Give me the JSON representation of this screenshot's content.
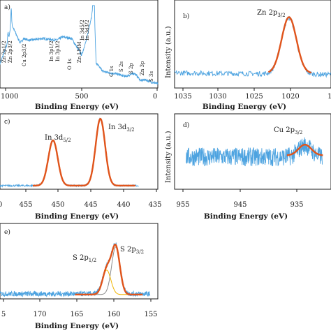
{
  "colors": {
    "raw": "#4da3e0",
    "fit": "#e0541b",
    "component_1": "#8c8c8c",
    "component_2": "#f0b400"
  },
  "chart_data": [
    {
      "panel": "a)",
      "type": "line",
      "xlabel": "Binding Energy (eV)",
      "ylabel": "",
      "xlim": [
        1100,
        0
      ],
      "xticks": [
        "1000",
        "500",
        "0"
      ],
      "reversed_x": true,
      "annotations": [
        {
          "text": "Zn 2p1/2",
          "x": 1045
        },
        {
          "text": "Zn 2p3/2",
          "x": 1022
        },
        {
          "text": "Cu 2p3/2",
          "x": 933
        },
        {
          "text": "In 3p1/2",
          "x": 703
        },
        {
          "text": "In 3p3/2",
          "x": 665
        },
        {
          "text": "O 1s",
          "x": 531
        },
        {
          "text": "Zn LMM",
          "x": 498
        },
        {
          "text": "In 3d5/2",
          "x": 444
        },
        {
          "text": "In 3d3/2",
          "x": 452
        },
        {
          "text": "C 1s",
          "x": 285
        },
        {
          "text": "S 2s",
          "x": 226
        },
        {
          "text": "S 2p",
          "x": 162
        },
        {
          "text": "Zn 3p",
          "x": 89
        },
        {
          "text": "S 3s",
          "x": 14
        }
      ],
      "series": [
        {
          "values": [
            [
              1100,
              0.3
            ],
            [
              1045,
              0.55
            ],
            [
              1022,
              0.78
            ],
            [
              960,
              0.55
            ],
            [
              933,
              0.6
            ],
            [
              900,
              0.58
            ],
            [
              800,
              0.6
            ],
            [
              703,
              0.58
            ],
            [
              665,
              0.62
            ],
            [
              600,
              0.6
            ],
            [
              531,
              0.4
            ],
            [
              498,
              0.58
            ],
            [
              452,
              0.95
            ],
            [
              444,
              1.0
            ],
            [
              430,
              0.3
            ],
            [
              380,
              0.2
            ],
            [
              285,
              0.17
            ],
            [
              226,
              0.14
            ],
            [
              162,
              0.18
            ],
            [
              120,
              0.09
            ],
            [
              89,
              0.1
            ],
            [
              40,
              0.07
            ],
            [
              14,
              0.06
            ],
            [
              0,
              0.05
            ]
          ]
        }
      ]
    },
    {
      "panel": "b)",
      "type": "line",
      "xlabel": "Binding Energy (eV)",
      "ylabel": "Intensity (a.u.)",
      "xlim": [
        1035,
        1016
      ],
      "xticks": [
        "1035",
        "1030",
        "1025",
        "1020",
        "1"
      ],
      "peak_label": "Zn 2p3/2",
      "series": [
        {
          "name": "raw",
          "values": [
            [
              1035,
              0.18
            ],
            [
              1025,
              0.18
            ],
            [
              1021,
              0.85
            ],
            [
              1016,
              0.16
            ]
          ]
        },
        {
          "name": "fit",
          "values": [
            [
              1023.5,
              0.2
            ],
            [
              1021.1,
              0.85
            ],
            [
              1018.5,
              0.18
            ]
          ]
        }
      ]
    },
    {
      "panel": "c)",
      "type": "line",
      "xlabel": "Binding Energy (eV)",
      "ylabel": "",
      "xlim": [
        460,
        435
      ],
      "xticks": [
        "455",
        "450",
        "445",
        "440",
        "435"
      ],
      "peak_labels": [
        "In 3d5/2",
        "In 3d3/2"
      ],
      "series": [
        {
          "name": "raw",
          "values": [
            [
              460,
              0.05
            ],
            [
              451.6,
              0.68
            ],
            [
              444.1,
              0.98
            ],
            [
              438,
              0.06
            ]
          ]
        },
        {
          "name": "fit",
          "values": [
            [
              451.6,
              0.68
            ],
            [
              444.1,
              0.98
            ]
          ]
        }
      ]
    },
    {
      "panel": "d)",
      "type": "line",
      "xlabel": "Binding Energy (eV)",
      "ylabel": "Intensity (a.u.)",
      "xlim": [
        955,
        928
      ],
      "xticks": [
        "955",
        "945",
        "935"
      ],
      "peak_label": "Cu 2p3/2",
      "series": [
        {
          "name": "raw",
          "values": [
            [
              953,
              0.45
            ],
            [
              940,
              0.45
            ],
            [
              932.5,
              0.62
            ],
            [
              930,
              0.46
            ]
          ]
        },
        {
          "name": "fit",
          "values": [
            [
              935.5,
              0.48
            ],
            [
              932.5,
              0.62
            ],
            [
              929.5,
              0.47
            ]
          ]
        }
      ]
    },
    {
      "panel": "e)",
      "type": "line",
      "xlabel": "Binding Energy (eV)",
      "ylabel": "",
      "xlim": [
        176,
        155
      ],
      "xticks": [
        "5",
        "170",
        "165",
        "160",
        "155"
      ],
      "peak_labels": [
        "S 2p1/2",
        "S 2p3/2"
      ],
      "series": [
        {
          "name": "raw",
          "values": [
            [
              176,
              0.08
            ],
            [
              166,
              0.06
            ],
            [
              161.7,
              0.6
            ],
            [
              160.6,
              0.9
            ],
            [
              156,
              0.04
            ]
          ]
        },
        {
          "name": "fit",
          "values": [
            [
              166,
              0.04
            ],
            [
              161.7,
              0.58
            ],
            [
              160.6,
              0.85
            ],
            [
              157,
              0.04
            ]
          ]
        },
        {
          "name": "component_1",
          "values": [
            [
              160.6,
              0.7
            ]
          ]
        },
        {
          "name": "component_2",
          "values": [
            [
              161.8,
              0.38
            ]
          ]
        }
      ]
    }
  ],
  "text": {
    "a": {
      "label": "a)",
      "xlabel": "Binding Energy (eV)",
      "ticks": [
        "1000",
        "500",
        "0"
      ],
      "ann": {
        "zn2p12": "Zn 2p1/2",
        "zn2p32": "Zn 2p3/2",
        "cu2p32": "Cu 2p3/2",
        "in3p12": "In 3p1/2",
        "in3p32": "In 3p3/2",
        "o1s": "O 1s",
        "znlmm": "Zn LMM",
        "in3d52": "In 3d5/2",
        "in3d32": "In 3d3/2",
        "c1s": "C 1s",
        "s2s": "S 2s",
        "s2p": "S 2p",
        "zn3p": "Zn 3p",
        "s3s": "S 3s"
      }
    },
    "b": {
      "label": "b)",
      "xlabel": "Binding Energy (eV)",
      "ylabel": "Intensity (a.u.)",
      "ticks": [
        "1035",
        "1030",
        "1025",
        "1020",
        "1"
      ],
      "peak_main": "Zn 2p",
      "peak_sub": "3/2"
    },
    "c": {
      "label": "c)",
      "xlabel": "Binding Energy (eV)",
      "ticks": [
        "455",
        "450",
        "445",
        "440",
        "435"
      ],
      "peak1_main": "In 3d",
      "peak1_sub": "5/2",
      "peak2_main": "In 3d",
      "peak2_sub": "3/2"
    },
    "d": {
      "label": "d)",
      "xlabel": "Binding Energy (eV)",
      "ylabel": "Intensity (a.u.)",
      "ticks": [
        "955",
        "945",
        "935"
      ],
      "peak_main": "Cu 2p",
      "peak_sub": "3/2"
    },
    "e": {
      "label": "e)",
      "xlabel": "Binding Energy (eV)",
      "ticks": [
        "5",
        "170",
        "165",
        "160",
        "155"
      ],
      "peak1_main": "S 2p",
      "peak1_sub": "1/2",
      "peak2_main": "S 2p",
      "peak2_sub": "3/2"
    }
  }
}
